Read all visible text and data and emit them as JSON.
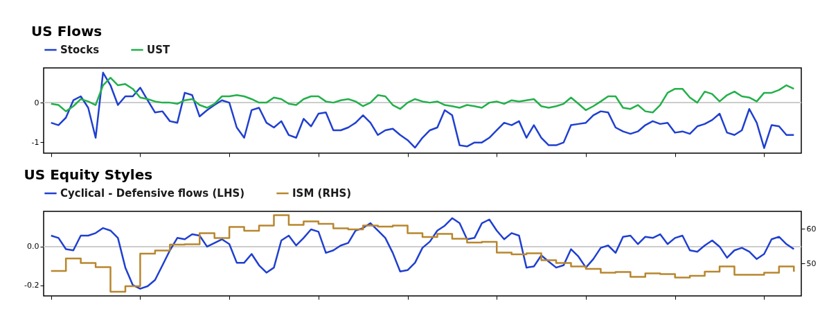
{
  "chart_data": [
    {
      "type": "line",
      "title": "US Flows",
      "categories": [
        null,
        null,
        null,
        null,
        null,
        null,
        null,
        null,
        null,
        null,
        null,
        null,
        null,
        null,
        null,
        null,
        null,
        null,
        null,
        null,
        null,
        null,
        null,
        null,
        null,
        null,
        null,
        null,
        null,
        null,
        null,
        null,
        null,
        null,
        null,
        null,
        null,
        null,
        null,
        null,
        null,
        null,
        null,
        null,
        null,
        null,
        null,
        null,
        null,
        null,
        null,
        null,
        null,
        null,
        null,
        null,
        null,
        null,
        null,
        null,
        null,
        null,
        null,
        null,
        null,
        null,
        null,
        null,
        null,
        null,
        null,
        null,
        null,
        null,
        null,
        null,
        null,
        null,
        null,
        null,
        null,
        null,
        null,
        null,
        null,
        null,
        null,
        null,
        null,
        null,
        null,
        null,
        null,
        null,
        null,
        null,
        null,
        null,
        null,
        null,
        null
      ],
      "ylim": [
        -1.28,
        0.88
      ],
      "yticks": [
        -1,
        0
      ],
      "tick_labels": "y",
      "legend": "top",
      "ref_lines": [
        {
          "axis": "y",
          "value": 0,
          "color": "#cccccc"
        }
      ],
      "series": [
        {
          "name": "Stocks",
          "color": "#1f3fd0",
          "values": [
            -0.51,
            -0.57,
            -0.38,
            0.06,
            0.16,
            -0.13,
            -0.89,
            0.76,
            0.44,
            -0.06,
            0.16,
            0.16,
            0.38,
            0.06,
            -0.25,
            -0.22,
            -0.47,
            -0.51,
            0.25,
            0.19,
            -0.35,
            -0.19,
            -0.06,
            0.06,
            0,
            -0.63,
            -0.89,
            -0.19,
            -0.13,
            -0.51,
            -0.63,
            -0.47,
            -0.82,
            -0.89,
            -0.41,
            -0.6,
            -0.28,
            -0.25,
            -0.7,
            -0.7,
            -0.63,
            -0.51,
            -0.32,
            -0.51,
            -0.82,
            -0.7,
            -0.66,
            -0.82,
            -0.95,
            -1.14,
            -0.89,
            -0.7,
            -0.63,
            -0.19,
            -0.32,
            -1.08,
            -1.11,
            -1.01,
            -1.01,
            -0.89,
            -0.7,
            -0.51,
            -0.57,
            -0.47,
            -0.89,
            -0.57,
            -0.89,
            -1.08,
            -1.08,
            -1.01,
            -0.57,
            -0.54,
            -0.51,
            -0.32,
            -0.22,
            -0.25,
            -0.63,
            -0.73,
            -0.79,
            -0.73,
            -0.57,
            -0.47,
            -0.54,
            -0.51,
            -0.76,
            -0.73,
            -0.79,
            -0.6,
            -0.54,
            -0.44,
            -0.28,
            -0.76,
            -0.82,
            -0.7,
            -0.16,
            -0.51,
            -1.15,
            -0.57,
            -0.6,
            -0.82,
            -0.82
          ]
        },
        {
          "name": "UST",
          "color": "#22b04a",
          "values": [
            -0.03,
            -0.06,
            -0.22,
            -0.09,
            0.09,
            0.03,
            -0.06,
            0.44,
            0.63,
            0.44,
            0.47,
            0.35,
            0.13,
            0.09,
            0.03,
            0,
            0,
            -0.03,
            0.06,
            0.09,
            -0.06,
            -0.13,
            -0.03,
            0.16,
            0.16,
            0.19,
            0.16,
            0.09,
            0,
            0,
            0.13,
            0.09,
            -0.03,
            -0.06,
            0.09,
            0.16,
            0.16,
            0.03,
            0,
            0.06,
            0.09,
            0.03,
            -0.09,
            0,
            0.19,
            0.16,
            -0.06,
            -0.16,
            0,
            0.09,
            0.03,
            0,
            0.03,
            -0.06,
            -0.09,
            -0.13,
            -0.06,
            -0.09,
            -0.13,
            0,
            0.03,
            -0.03,
            0.06,
            0.03,
            0.06,
            0.09,
            -0.09,
            -0.13,
            -0.09,
            -0.03,
            0.13,
            -0.03,
            -0.19,
            -0.09,
            0.03,
            0.16,
            0.16,
            -0.13,
            -0.16,
            -0.06,
            -0.22,
            -0.25,
            -0.06,
            0.25,
            0.35,
            0.35,
            0.13,
            0,
            0.28,
            0.22,
            0.03,
            0.19,
            0.28,
            0.16,
            0.13,
            0.03,
            0.25,
            0.25,
            0.32,
            0.44,
            0.35
          ]
        }
      ]
    },
    {
      "type": "line",
      "title": "US Equity Styles",
      "categories": [
        null,
        null,
        null,
        null,
        null,
        null,
        null,
        null,
        null,
        null,
        null,
        null,
        null,
        null,
        null,
        null,
        null,
        null,
        null,
        null,
        null,
        null,
        null,
        null,
        null,
        null,
        null,
        null,
        null,
        null,
        null,
        null,
        null,
        null,
        null,
        null,
        null,
        null,
        null,
        null,
        null,
        null,
        null,
        null,
        null,
        null,
        null,
        null,
        null,
        null,
        null,
        null,
        null,
        null,
        null,
        null,
        null,
        null,
        null,
        null,
        null,
        null,
        null,
        null,
        null,
        null,
        null,
        null,
        null,
        null,
        null,
        null,
        null,
        null,
        null,
        null,
        null,
        null,
        null,
        null,
        null,
        null,
        null,
        null,
        null,
        null,
        null,
        null,
        null,
        null,
        null,
        null,
        null,
        null,
        null,
        null,
        null,
        null,
        null,
        null,
        null
      ],
      "ylim": [
        -0.254,
        0.182
      ],
      "yticks": [
        {
          "value": -0.2,
          "label": "-0.2"
        },
        {
          "value": 0,
          "label": "0.0"
        }
      ],
      "y2lim": [
        40.6,
        65
      ],
      "y2ticks": [
        50,
        60
      ],
      "tick_labels": "y",
      "legend": "top",
      "ref_lines": [
        {
          "axis": "y",
          "value": 0,
          "color": "#cccccc"
        }
      ],
      "series": [
        {
          "name": "Cyclical - Defensive flows (LHS)",
          "color": "#1f3fd0",
          "values": [
            0.057,
            0.045,
            -0.013,
            -0.019,
            0.057,
            0.057,
            0.07,
            0.096,
            0.083,
            0.045,
            -0.108,
            -0.198,
            -0.217,
            -0.204,
            -0.172,
            -0.096,
            -0.019,
            0.045,
            0.038,
            0.064,
            0.057,
            0,
            0.019,
            0.038,
            0.013,
            -0.083,
            -0.083,
            -0.038,
            -0.096,
            -0.134,
            -0.108,
            0.032,
            0.057,
            0.006,
            0.045,
            0.089,
            0.077,
            -0.032,
            -0.019,
            0.006,
            0.019,
            0.083,
            0.096,
            0.121,
            0.083,
            0.045,
            -0.032,
            -0.128,
            -0.121,
            -0.083,
            -0.006,
            0.026,
            0.083,
            0.108,
            0.147,
            0.121,
            0.038,
            0.045,
            0.121,
            0.14,
            0.083,
            0.038,
            0.07,
            0.057,
            -0.108,
            -0.102,
            -0.045,
            -0.077,
            -0.108,
            -0.096,
            -0.013,
            -0.051,
            -0.108,
            -0.064,
            -0.006,
            0.006,
            -0.032,
            0.051,
            0.057,
            0.013,
            0.051,
            0.045,
            0.064,
            0.013,
            0.045,
            0.057,
            -0.019,
            -0.026,
            0.006,
            0.032,
            0,
            -0.057,
            -0.019,
            -0.006,
            -0.026,
            -0.064,
            -0.038,
            0.038,
            0.051,
            0.013,
            -0.013
          ]
        },
        {
          "name": "ISM (RHS)",
          "type": "step",
          "axis": "y2",
          "color": "#b8862e",
          "values": [
            47.8,
            47.8,
            51.4,
            51.4,
            50.1,
            50.1,
            48.9,
            48.9,
            41.8,
            41.8,
            43.4,
            43.4,
            52.8,
            52.8,
            53.7,
            53.7,
            55.4,
            55.4,
            55.5,
            55.5,
            58.7,
            58.7,
            57.3,
            57.3,
            60.5,
            60.5,
            59.4,
            59.4,
            60.9,
            60.9,
            63.9,
            63.9,
            61.1,
            61.1,
            62.1,
            62.1,
            61.4,
            61.4,
            60.1,
            60.1,
            59.8,
            59.8,
            60.9,
            60.9,
            60.6,
            60.6,
            60.9,
            60.9,
            58.7,
            58.7,
            57.6,
            57.6,
            58.5,
            58.5,
            57.1,
            57.1,
            56,
            56,
            56.2,
            56.2,
            53.1,
            53.1,
            52.6,
            52.6,
            52.9,
            52.9,
            50.9,
            50.9,
            50.1,
            50.1,
            49.1,
            49.1,
            48.4,
            48.4,
            47.3,
            47.3,
            47.5,
            47.5,
            46.1,
            46.1,
            47.1,
            47.1,
            46.9,
            46.9,
            45.9,
            45.9,
            46.4,
            46.4,
            47.6,
            47.6,
            49.1,
            49.1,
            46.7,
            46.7,
            46.7,
            46.7,
            47.3,
            47.3,
            49.1,
            49.1,
            47.6
          ]
        }
      ]
    }
  ]
}
